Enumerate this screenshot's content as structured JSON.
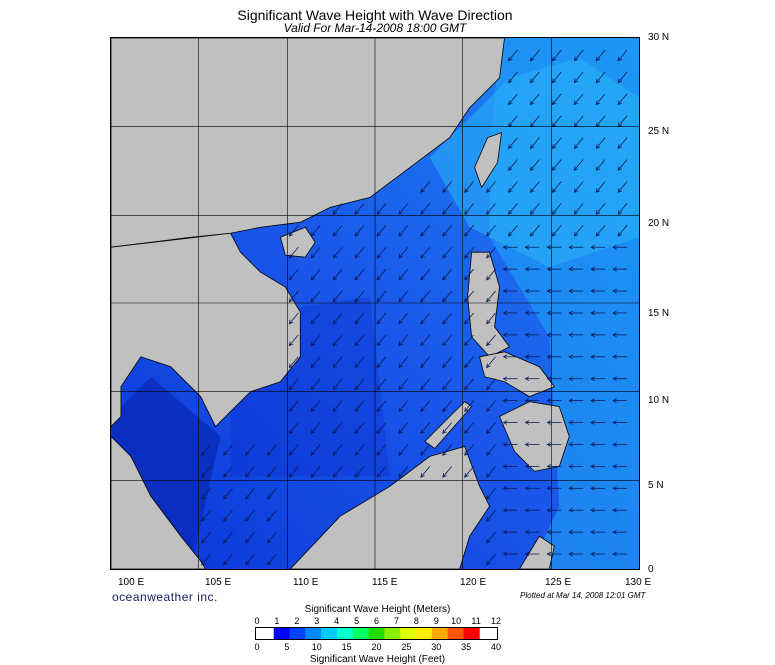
{
  "header": {
    "title": "Significant Wave Height with Wave Direction",
    "subtitle": "Valid For Mar-14-2008 18:00 GMT"
  },
  "map": {
    "lon_labels": [
      "100 E",
      "105 E",
      "110 E",
      "115 E",
      "120 E",
      "125 E",
      "130 E"
    ],
    "lat_labels": [
      "30 N",
      "25 N",
      "20 N",
      "15 N",
      "10 N",
      "5 N",
      "0"
    ],
    "lon_range": [
      100,
      130
    ],
    "lat_range": [
      0,
      30
    ],
    "land_color": "#c0c0c0",
    "sea_deep_color": "#1a4ee6",
    "sea_light_color": "#1d8cf2",
    "arrow_direction": "northeast-to-southwest"
  },
  "footer": {
    "brand": "oceanweather inc.",
    "plotted": "Plotted at Mar 14, 2008 12:01 GMT"
  },
  "legend": {
    "meters_title": "Significant Wave Height (Meters)",
    "feet_title": "Significant Wave Height (Feet)",
    "meters_ticks": [
      "0",
      "1",
      "2",
      "3",
      "4",
      "5",
      "6",
      "7",
      "8",
      "9",
      "10",
      "11",
      "12"
    ],
    "feet_ticks": [
      "0",
      "5",
      "10",
      "15",
      "20",
      "25",
      "30",
      "35",
      "40"
    ],
    "colors": [
      "#0000ff",
      "#0044ff",
      "#0088ff",
      "#00ccff",
      "#00ffcc",
      "#00ff66",
      "#22dd00",
      "#88ee00",
      "#ddff00",
      "#ffee00",
      "#ffaa00",
      "#ff5500",
      "#ff0000"
    ]
  }
}
